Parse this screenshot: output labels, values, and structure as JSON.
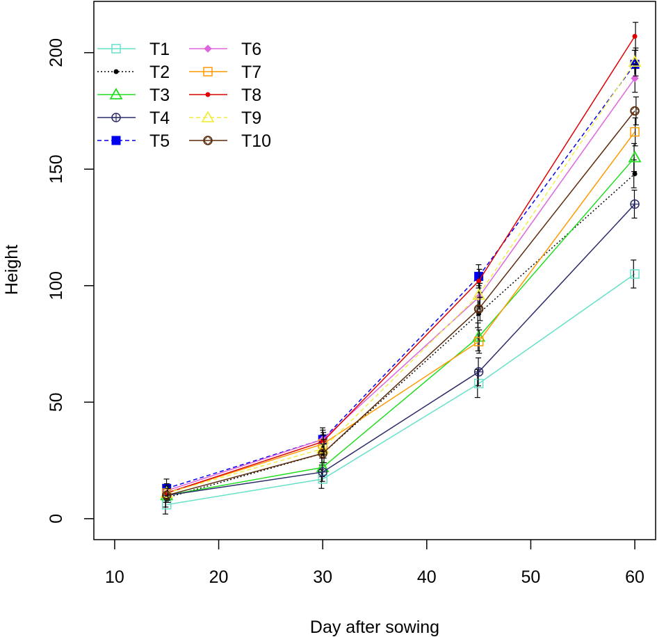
{
  "chart_data": {
    "type": "line",
    "title": "",
    "xlabel": "Day after sowing",
    "ylabel": "Height",
    "xlim": [
      8,
      62
    ],
    "ylim": [
      -9,
      222
    ],
    "x_ticks": [
      "10",
      "20",
      "30",
      "40",
      "50",
      "60"
    ],
    "y_ticks": [
      "0",
      "50",
      "100",
      "150",
      "200"
    ],
    "x": [
      15,
      30,
      45,
      60
    ],
    "legend_position": "top-left",
    "series": [
      {
        "name": "T1",
        "color": "#66e0c8",
        "marker": "open-square",
        "dash": "solid",
        "values": [
          6,
          17,
          58,
          105
        ],
        "errors": [
          4,
          4,
          6,
          6
        ]
      },
      {
        "name": "T2",
        "color": "#000000",
        "marker": "small-dot",
        "dash": "dotted",
        "values": [
          9,
          28,
          88,
          148
        ],
        "errors": [
          4,
          5,
          6,
          6
        ]
      },
      {
        "name": "T3",
        "color": "#22dd22",
        "marker": "open-triangle",
        "dash": "solid",
        "values": [
          10,
          22,
          78,
          155
        ],
        "errors": [
          3,
          4,
          6,
          6
        ]
      },
      {
        "name": "T4",
        "color": "#2a2a6a",
        "marker": "circle-plus",
        "dash": "solid",
        "values": [
          10,
          20,
          63,
          135
        ],
        "errors": [
          3,
          4,
          6,
          6
        ]
      },
      {
        "name": "T5",
        "color": "#0000ee",
        "marker": "filled-square",
        "dash": "dashed",
        "values": [
          13,
          34,
          104,
          195
        ],
        "errors": [
          4,
          5,
          5,
          6
        ]
      },
      {
        "name": "T6",
        "color": "#dd66dd",
        "marker": "diamond",
        "dash": "solid",
        "values": [
          12,
          34,
          95,
          189
        ],
        "errors": [
          3,
          4,
          5,
          6
        ]
      },
      {
        "name": "T7",
        "color": "#ff9900",
        "marker": "open-square",
        "dash": "solid",
        "values": [
          11,
          32,
          76,
          166
        ],
        "errors": [
          3,
          4,
          5,
          6
        ]
      },
      {
        "name": "T8",
        "color": "#dd0000",
        "marker": "small-dot",
        "dash": "solid",
        "values": [
          11,
          33,
          102,
          207
        ],
        "errors": [
          3,
          4,
          5,
          6
        ]
      },
      {
        "name": "T9",
        "color": "#eeee44",
        "marker": "open-triangle",
        "dash": "dashed",
        "values": [
          11,
          30,
          96,
          196
        ],
        "errors": [
          3,
          4,
          5,
          6
        ]
      },
      {
        "name": "T10",
        "color": "#5a2a0a",
        "marker": "circle-diamond",
        "dash": "solid",
        "values": [
          10,
          28,
          90,
          175
        ],
        "errors": [
          3,
          4,
          5,
          6
        ]
      }
    ]
  }
}
